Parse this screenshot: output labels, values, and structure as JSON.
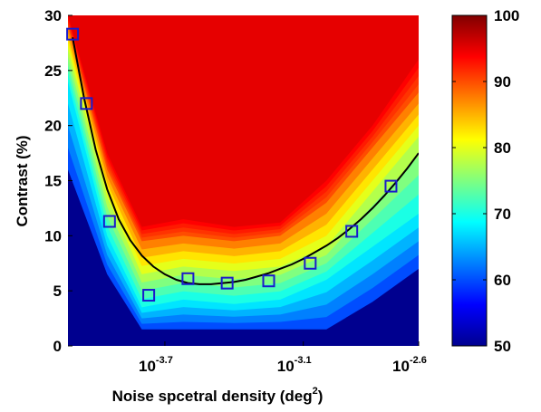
{
  "chart_data": {
    "type": "heatmap",
    "xlabel": "Noise spcetral density (deg",
    "xlabel_sup": "2",
    "xlabel_tail": ")",
    "ylabel": "Contrast (%)",
    "x_scale": "log10",
    "xlim": [
      -4.12,
      -2.6
    ],
    "ylim": [
      0,
      30
    ],
    "x_tick_base": "10",
    "x_ticks": [
      {
        "value": -3.7,
        "exponent": "-3.7"
      },
      {
        "value": -3.1,
        "exponent": "-3.1"
      },
      {
        "value": -2.6,
        "exponent": "-2.6"
      }
    ],
    "y_ticks": [
      0,
      5,
      10,
      15,
      20,
      25,
      30
    ],
    "colorbar": {
      "range": [
        50,
        100
      ],
      "ticks": [
        50,
        60,
        70,
        80,
        90,
        100
      ],
      "colormap": "jet"
    },
    "surface_boundaries": [
      {
        "level": 60,
        "x": [
          -4.12,
          -3.95,
          -3.8,
          -3.62,
          -3.4,
          -3.2,
          -3.0,
          -2.8,
          -2.6
        ],
        "y": [
          16,
          6.5,
          1.5,
          1.5,
          1.5,
          1.5,
          1.5,
          4,
          7
        ]
      },
      {
        "level": 70,
        "x": [
          -4.12,
          -3.95,
          -3.8,
          -3.62,
          -3.4,
          -3.2,
          -3.0,
          -2.8,
          -2.6
        ],
        "y": [
          24,
          10,
          3.5,
          4.2,
          3.8,
          4.2,
          6,
          9,
          12
        ]
      },
      {
        "level": 80,
        "x": [
          -4.12,
          -3.95,
          -3.8,
          -3.62,
          -3.4,
          -3.2,
          -3.0,
          -2.8,
          -2.6
        ],
        "y": [
          27,
          13.5,
          6.5,
          7.2,
          6.8,
          7.2,
          9,
          14,
          19
        ]
      },
      {
        "level": 90,
        "x": [
          -4.12,
          -3.95,
          -3.8,
          -3.62,
          -3.4,
          -3.2,
          -3.0,
          -2.8,
          -2.6
        ],
        "y": [
          29,
          16,
          9.5,
          10,
          9.5,
          10,
          13,
          18,
          23
        ]
      },
      {
        "level": 95,
        "x": [
          -4.12,
          -3.95,
          -3.8,
          -3.62,
          -3.4,
          -3.2,
          -3.0,
          -2.8,
          -2.6
        ],
        "y": [
          30,
          17.5,
          10.8,
          11.5,
          10.8,
          11.2,
          15,
          20,
          26
        ]
      }
    ],
    "fit_curve": {
      "x": [
        -4.1,
        -4.05,
        -4.0,
        -3.95,
        -3.9,
        -3.85,
        -3.8,
        -3.75,
        -3.7,
        -3.65,
        -3.6,
        -3.55,
        -3.5,
        -3.45,
        -3.4,
        -3.35,
        -3.3,
        -3.25,
        -3.2,
        -3.15,
        -3.1,
        -3.05,
        -3.0,
        -2.95,
        -2.9,
        -2.85,
        -2.8,
        -2.75,
        -2.7,
        -2.65,
        -2.6
      ],
      "y": [
        28.0,
        22.5,
        17.8,
        14.2,
        11.5,
        9.6,
        8.2,
        7.2,
        6.5,
        6.0,
        5.7,
        5.6,
        5.6,
        5.7,
        5.8,
        6.0,
        6.3,
        6.6,
        7.0,
        7.4,
        7.9,
        8.5,
        9.1,
        9.8,
        10.6,
        11.5,
        12.5,
        13.6,
        14.8,
        16.1,
        17.5
      ]
    },
    "points": {
      "x": [
        -4.1,
        -4.04,
        -3.94,
        -3.77,
        -3.6,
        -3.43,
        -3.25,
        -3.07,
        -2.89,
        -2.72
      ],
      "y": [
        28.3,
        22.0,
        11.3,
        4.6,
        6.1,
        5.7,
        5.9,
        7.5,
        10.4,
        14.5
      ]
    }
  }
}
